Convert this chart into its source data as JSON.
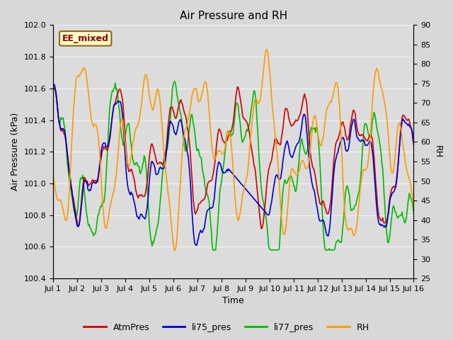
{
  "title": "Air Pressure and RH",
  "xlabel": "Time",
  "ylabel_left": "Air Pressure (kPa)",
  "ylabel_right": "RH",
  "label_text": "EE_mixed",
  "ylim_left": [
    100.4,
    102.0
  ],
  "ylim_right": [
    25,
    90
  ],
  "yticks_left": [
    100.4,
    100.6,
    100.8,
    101.0,
    101.2,
    101.4,
    101.6,
    101.8,
    102.0
  ],
  "yticks_right": [
    25,
    30,
    35,
    40,
    45,
    50,
    55,
    60,
    65,
    70,
    75,
    80,
    85,
    90
  ],
  "xtick_labels": [
    "Jul 1",
    "Jul 2",
    "Jul 3",
    "Jul 4",
    "Jul 5",
    "Jul 6",
    "Jul 7",
    "Jul 8",
    "Jul 9",
    "Jul 10",
    "Jul 11",
    "Jul 12",
    "Jul 13",
    "Jul 14",
    "Jul 15",
    "Jul 16"
  ],
  "outer_bg": "#d8d8d8",
  "plot_bg": "#dcdcdc",
  "grid_color": "#f0f0f0",
  "colors": {
    "AtmPres": "#cc0000",
    "li75_pres": "#0000cc",
    "li77_pres": "#00bb00",
    "RH": "#ff9900"
  },
  "lw": 1.2,
  "n": 500,
  "seed": 7
}
